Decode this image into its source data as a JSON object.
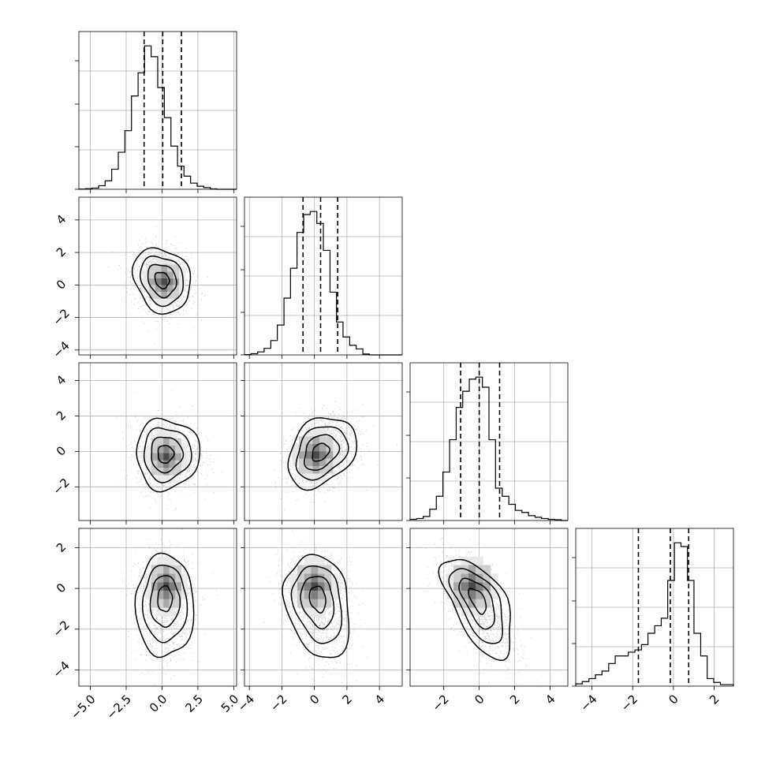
{
  "chart_data": {
    "type": "corner",
    "n_params": 4,
    "params": [
      {
        "index": 0,
        "range": [
          -5.8,
          5.2
        ],
        "ticks": [
          -5.0,
          -2.5,
          0.0,
          2.5,
          5.0
        ],
        "tick_labels": [
          "−5.0",
          "−2.5",
          "0.0",
          "2.5",
          "5.0"
        ],
        "quantiles": [
          -1.25,
          0.05,
          1.35
        ],
        "hist_edges": [
          -5.8,
          -5.34,
          -4.88,
          -4.42,
          -3.97,
          -3.51,
          -3.05,
          -2.59,
          -2.13,
          -1.67,
          -1.22,
          -0.76,
          -0.3,
          0.16,
          0.62,
          1.08,
          1.53,
          1.99,
          2.45,
          2.91,
          3.37,
          3.83,
          4.28,
          4.74,
          5.2
        ],
        "hist_counts": [
          3,
          8,
          16,
          46,
          110,
          260,
          480,
          760,
          1210,
          1510,
          1860,
          1720,
          1320,
          930,
          560,
          300,
          170,
          80,
          40,
          22,
          6,
          0,
          0,
          0
        ]
      },
      {
        "index": 1,
        "range": [
          -4.3,
          5.4
        ],
        "ticks": [
          -4,
          -2,
          0,
          2,
          4
        ],
        "tick_labels": [
          "−4",
          "−2",
          "0",
          "2",
          "4"
        ],
        "quantiles": [
          -0.7,
          0.38,
          1.43
        ],
        "hist_edges": [
          -4.3,
          -3.9,
          -3.49,
          -3.09,
          -2.68,
          -2.28,
          -1.87,
          -1.47,
          -1.07,
          -0.66,
          -0.26,
          0.15,
          0.55,
          0.96,
          1.36,
          1.76,
          2.17,
          2.57,
          2.98,
          3.38,
          3.79,
          4.19,
          4.59,
          5.0,
          5.4
        ],
        "hist_counts": [
          1,
          4,
          10,
          22,
          48,
          100,
          190,
          290,
          410,
          470,
          480,
          440,
          350,
          210,
          110,
          60,
          32,
          20,
          3,
          0,
          0,
          0,
          0,
          0
        ]
      },
      {
        "index": 2,
        "range": [
          -3.9,
          5.0
        ],
        "ticks": [
          -2,
          0,
          2,
          4
        ],
        "tick_labels": [
          "−2",
          "0",
          "2",
          "4"
        ],
        "quantiles": [
          -1.05,
          0.0,
          1.15
        ],
        "hist_edges": [
          -3.9,
          -3.53,
          -3.16,
          -2.79,
          -2.42,
          -2.05,
          -1.67,
          -1.3,
          -0.93,
          -0.56,
          -0.19,
          0.18,
          0.55,
          0.92,
          1.3,
          1.67,
          2.04,
          2.41,
          2.78,
          3.15,
          3.52,
          3.89,
          4.26,
          4.63,
          5.0
        ],
        "hist_counts": [
          3,
          5,
          10,
          28,
          60,
          120,
          200,
          280,
          320,
          350,
          355,
          330,
          200,
          80,
          60,
          40,
          25,
          20,
          12,
          8,
          5,
          3,
          2,
          0
        ]
      },
      {
        "index": 3,
        "range": [
          -4.8,
          2.95
        ],
        "ticks": [
          -4,
          -2,
          0,
          2
        ],
        "tick_labels": [
          "−4",
          "−2",
          "0",
          "2"
        ],
        "quantiles": [
          -1.72,
          -0.15,
          0.75
        ],
        "hist_edges": [
          -4.8,
          -4.48,
          -4.15,
          -3.83,
          -3.51,
          -3.18,
          -2.86,
          -2.54,
          -2.22,
          -1.89,
          -1.57,
          -1.25,
          -0.92,
          -0.6,
          -0.28,
          0.05,
          0.37,
          0.69,
          1.01,
          1.34,
          1.66,
          1.98,
          2.31,
          2.63,
          2.95
        ],
        "hist_counts": [
          3,
          6,
          10,
          15,
          20,
          30,
          40,
          40,
          45,
          48,
          55,
          70,
          80,
          90,
          140,
          190,
          185,
          140,
          70,
          40,
          10,
          5,
          2,
          2
        ]
      }
    ],
    "pairs": [
      {
        "x": 0,
        "y": 1,
        "mean": [
          0.0,
          0.3
        ],
        "sd": [
          1.0,
          1.0
        ],
        "rho": -0.18,
        "skew": 0.0,
        "peak": [
          0.15,
          0.2
        ]
      },
      {
        "x": 0,
        "y": 2,
        "mean": [
          0.2,
          -0.15
        ],
        "sd": [
          1.0,
          1.0
        ],
        "rho": 0.0,
        "skew": 0.2,
        "peak": [
          0.3,
          -0.3
        ]
      },
      {
        "x": 1,
        "y": 2,
        "mean": [
          0.35,
          -0.05
        ],
        "sd": [
          1.0,
          1.0
        ],
        "rho": 0.3,
        "skew": 0.1,
        "peak": [
          0.1,
          -0.2
        ]
      },
      {
        "x": 0,
        "y": 3,
        "mean": [
          0.2,
          -0.4
        ],
        "sd": [
          1.0,
          1.0
        ],
        "rho": 0.0,
        "skew": -0.6,
        "peak": [
          0.3,
          0.1
        ]
      },
      {
        "x": 1,
        "y": 3,
        "mean": [
          0.2,
          -0.4
        ],
        "sd": [
          1.0,
          1.0
        ],
        "rho": -0.2,
        "skew": -0.6,
        "peak": [
          0.0,
          0.1
        ]
      },
      {
        "x": 2,
        "y": 3,
        "mean": [
          -0.1,
          -0.5
        ],
        "sd": [
          1.0,
          1.0
        ],
        "rho": -0.6,
        "skew": -0.5,
        "peak": [
          -0.4,
          0.1
        ]
      }
    ],
    "contour_levels_sigma": [
      0.5,
      1.0,
      1.5,
      2.0
    ],
    "grid": true,
    "colors": {
      "line": "#000000",
      "scatter": "#9a9a9a",
      "grid": "#b0b0b0"
    }
  }
}
